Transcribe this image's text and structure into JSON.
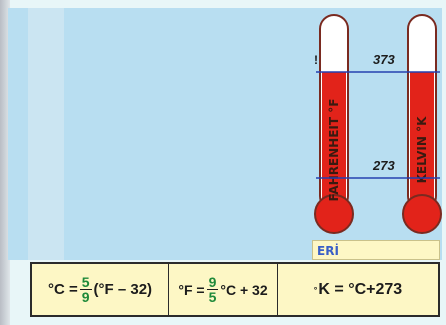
{
  "thermometers": {
    "fahrenheit_label": "FAHRENHEIT °F",
    "kelvin_label": "KELVIN °K",
    "upper_value": "373",
    "lower_value": "273",
    "fahrenheit_upper_mark": "!"
  },
  "label_box": "ERİ",
  "formulas": {
    "c_from_f": {
      "lhs": "°C =",
      "num": "5",
      "den": "9",
      "rhs": "(°F – 32)"
    },
    "f_from_c": {
      "lhs": "°F =",
      "num": "9",
      "den": "5",
      "rhs": "°C + 32"
    },
    "k_from_c": {
      "deg": "°",
      "k": "K",
      "eq": " = ",
      "c": "°C",
      "plus": "+273"
    }
  },
  "colors": {
    "fluid": "#e2231a",
    "tube_border": "#7a2a20",
    "level_line": "#2540b0",
    "formula_bg": "#fdf7c5"
  }
}
